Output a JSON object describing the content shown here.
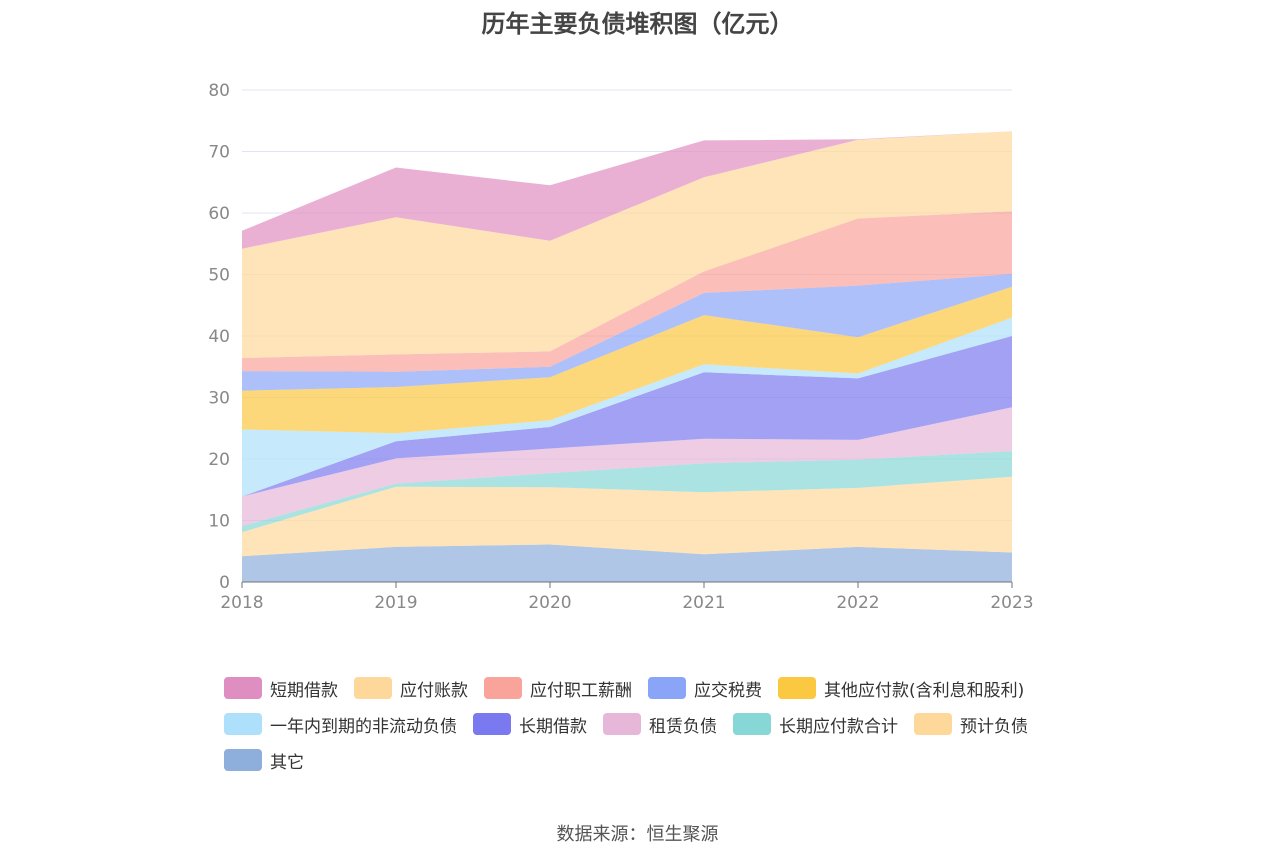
{
  "title": "历年主要负债堆积图（亿元）",
  "source": "数据来源：恒生聚源",
  "chart_data": {
    "type": "area",
    "stacked": true,
    "title": "历年主要负债堆积图（亿元）",
    "categories": [
      "2018",
      "2019",
      "2020",
      "2021",
      "2022",
      "2023"
    ],
    "ylim": [
      0,
      80
    ],
    "yticks": [
      "0",
      "10",
      "20",
      "30",
      "40",
      "50",
      "60",
      "70",
      "80"
    ],
    "grid": true,
    "legend_position": "bottom",
    "series": [
      {
        "name": "其它",
        "color": "#8eaedc",
        "values": [
          4.2,
          5.7,
          6.1,
          4.5,
          5.7,
          4.8
        ]
      },
      {
        "name": "预计负债",
        "color": "#fdd89a",
        "values": [
          3.9,
          9.8,
          9.3,
          10.1,
          9.6,
          12.3
        ]
      },
      {
        "name": "长期应付款合计",
        "color": "#87d7d7",
        "values": [
          1.0,
          0.5,
          2.3,
          4.7,
          4.6,
          4.2
        ]
      },
      {
        "name": "租赁负债",
        "color": "#e6b7d9",
        "values": [
          4.8,
          4.1,
          4.0,
          4.0,
          3.2,
          7.1
        ]
      },
      {
        "name": "长期借款",
        "color": "#7b79f0",
        "values": [
          0.0,
          2.8,
          3.5,
          10.8,
          10.0,
          11.6
        ]
      },
      {
        "name": "一年内到期的非流动负债",
        "color": "#aee0fb",
        "values": [
          10.9,
          1.3,
          1.1,
          1.3,
          0.8,
          3.0
        ]
      },
      {
        "name": "其他应付款(含利息和股利)",
        "color": "#fbc841",
        "values": [
          6.3,
          7.5,
          7.0,
          8.0,
          5.9,
          5.0
        ]
      },
      {
        "name": "应交税费",
        "color": "#8aa5f8",
        "values": [
          3.2,
          2.5,
          1.7,
          3.6,
          8.4,
          2.1
        ]
      },
      {
        "name": "应付职工薪酬",
        "color": "#f9a39a",
        "values": [
          2.1,
          2.8,
          2.5,
          3.5,
          10.9,
          10.2
        ]
      },
      {
        "name": "应付账款",
        "color": "#fdd89a",
        "values": [
          17.8,
          22.3,
          18.0,
          15.3,
          12.8,
          13.0
        ]
      },
      {
        "name": "短期借款",
        "color": "#df8ec1",
        "values": [
          2.9,
          8.1,
          9.0,
          6.0,
          0.1,
          0.0
        ]
      }
    ],
    "legend": [
      {
        "label": "短期借款",
        "color": "#df8ec1"
      },
      {
        "label": "应付账款",
        "color": "#fdd89a"
      },
      {
        "label": "应付职工薪酬",
        "color": "#f9a39a"
      },
      {
        "label": "应交税费",
        "color": "#8aa5f8"
      },
      {
        "label": "其他应付款(含利息和股利)",
        "color": "#fbc841"
      },
      {
        "label": "一年内到期的非流动负债",
        "color": "#aee0fb"
      },
      {
        "label": "长期借款",
        "color": "#7b79f0"
      },
      {
        "label": "租赁负债",
        "color": "#e6b7d9"
      },
      {
        "label": "长期应付款合计",
        "color": "#87d7d7"
      },
      {
        "label": "预计负债",
        "color": "#fdd89a"
      },
      {
        "label": "其它",
        "color": "#8eaedc"
      }
    ]
  }
}
